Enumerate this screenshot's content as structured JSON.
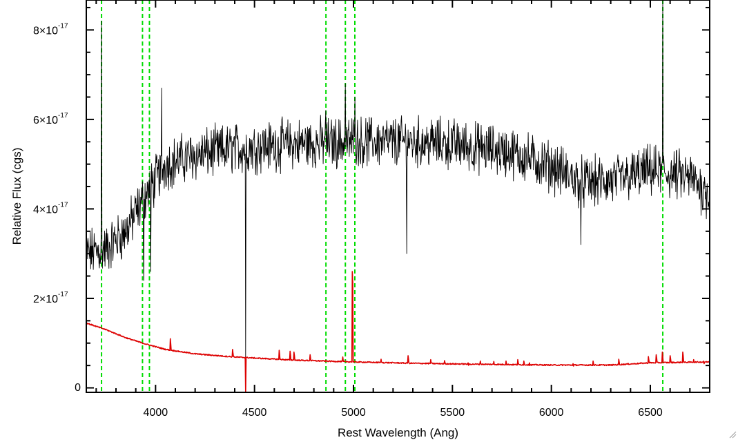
{
  "chart_data": {
    "type": "line",
    "title": "",
    "xlabel": "Rest Wavelength (Ang)",
    "ylabel": "Relative Flux (cgs)",
    "xlim": [
      3650,
      6800
    ],
    "ylim": [
      -1e-18,
      8.7e-17
    ],
    "x_ticks": [
      {
        "value": 4000,
        "label": "4000"
      },
      {
        "value": 4500,
        "label": "4500"
      },
      {
        "value": 5000,
        "label": "5000"
      },
      {
        "value": 5500,
        "label": "5500"
      },
      {
        "value": 6000,
        "label": "6000"
      },
      {
        "value": 6500,
        "label": "6500"
      }
    ],
    "y_ticks": [
      {
        "value": 0,
        "label": "0"
      },
      {
        "value": 2e-17,
        "mantissa": "2×10",
        "exponent": "-17"
      },
      {
        "value": 4e-17,
        "mantissa": "4×10",
        "exponent": "-17"
      },
      {
        "value": 6e-17,
        "mantissa": "6×10",
        "exponent": "-17"
      },
      {
        "value": 8e-17,
        "mantissa": "8×10",
        "exponent": "-17"
      }
    ],
    "x_minor_step": 100,
    "y_minor_step": 5e-18,
    "line_markers": {
      "color": "#00dd00",
      "style": "dashed",
      "x": [
        3727,
        3934,
        3969,
        4861,
        4959,
        5007,
        6563
      ]
    },
    "series": [
      {
        "color": "#000000",
        "kind": "noisy spectrum",
        "continuum": [
          [
            3650,
            3e-17
          ],
          [
            3750,
            3.1e-17
          ],
          [
            3850,
            3.5e-17
          ],
          [
            3950,
            4.3e-17
          ],
          [
            4050,
            5e-17
          ],
          [
            4200,
            5.2e-17
          ],
          [
            4400,
            5.35e-17
          ],
          [
            4700,
            5.45e-17
          ],
          [
            5000,
            5.5e-17
          ],
          [
            5300,
            5.5e-17
          ],
          [
            5500,
            5.45e-17
          ],
          [
            5800,
            5.25e-17
          ],
          [
            6000,
            4.95e-17
          ],
          [
            6150,
            4.6e-17
          ],
          [
            6300,
            4.6e-17
          ],
          [
            6500,
            4.85e-17
          ],
          [
            6700,
            4.7e-17
          ],
          [
            6800,
            4.3e-17
          ]
        ],
        "noise_amplitude": 4.5e-18,
        "features": [
          {
            "x": 3727,
            "y": 8.2e-17
          },
          {
            "x": 3940,
            "y": 2.4e-17
          },
          {
            "x": 3975,
            "y": 2.6e-17
          },
          {
            "x": 4030,
            "y": 6.7e-17
          },
          {
            "x": 4455,
            "y": 6.7e-18
          },
          {
            "x": 4861,
            "y": 6.2e-17
          },
          {
            "x": 4959,
            "y": 6.8e-17
          },
          {
            "x": 5007,
            "y": 6.5e-17
          },
          {
            "x": 5270,
            "y": 3e-17
          },
          {
            "x": 6150,
            "y": 3.2e-17
          },
          {
            "x": 6563,
            "y": 8.8e-17
          }
        ]
      },
      {
        "color": "#dd0000",
        "kind": "error spectrum",
        "continuum": [
          [
            3650,
            1.45e-17
          ],
          [
            3750,
            1.3e-17
          ],
          [
            3850,
            1.12e-17
          ],
          [
            3950,
            9.8e-18
          ],
          [
            4050,
            8.6e-18
          ],
          [
            4200,
            7.6e-18
          ],
          [
            4400,
            6.9e-18
          ],
          [
            4700,
            6.2e-18
          ],
          [
            5000,
            5.8e-18
          ],
          [
            5300,
            5.5e-18
          ],
          [
            5600,
            5.3e-18
          ],
          [
            6000,
            5.1e-18
          ],
          [
            6300,
            5.1e-18
          ],
          [
            6500,
            5.6e-18
          ],
          [
            6800,
            5.8e-18
          ]
        ],
        "spikes": [
          {
            "x": 4075,
            "y": 1.1e-17
          },
          {
            "x": 4390,
            "y": 8.6e-18
          },
          {
            "x": 4625,
            "y": 8.4e-18
          },
          {
            "x": 4680,
            "y": 8.2e-18
          },
          {
            "x": 4700,
            "y": 8e-18
          },
          {
            "x": 4780,
            "y": 7.4e-18
          },
          {
            "x": 4945,
            "y": 6.9e-18
          },
          {
            "x": 4995,
            "y": 2.6e-17
          },
          {
            "x": 5140,
            "y": 6.4e-18
          },
          {
            "x": 5275,
            "y": 7.2e-18
          },
          {
            "x": 5390,
            "y": 6.3e-18
          },
          {
            "x": 5460,
            "y": 6.1e-18
          },
          {
            "x": 5580,
            "y": 5.6e-18
          },
          {
            "x": 5640,
            "y": 6e-18
          },
          {
            "x": 5710,
            "y": 5.9e-18
          },
          {
            "x": 5770,
            "y": 6e-18
          },
          {
            "x": 5830,
            "y": 6.3e-18
          },
          {
            "x": 5860,
            "y": 6e-18
          },
          {
            "x": 5890,
            "y": 5.6e-18
          },
          {
            "x": 6110,
            "y": 5.4e-18
          },
          {
            "x": 6210,
            "y": 6e-18
          },
          {
            "x": 6340,
            "y": 6.4e-18
          },
          {
            "x": 6490,
            "y": 7e-18
          },
          {
            "x": 6530,
            "y": 7.4e-18
          },
          {
            "x": 6560,
            "y": 8e-18
          },
          {
            "x": 6600,
            "y": 7.2e-18
          },
          {
            "x": 6665,
            "y": 8e-18
          },
          {
            "x": 6720,
            "y": 6.3e-18
          },
          {
            "x": 6770,
            "y": 6e-18
          }
        ],
        "dips": [
          {
            "x": 4455,
            "y": -1e-18
          }
        ]
      }
    ]
  }
}
